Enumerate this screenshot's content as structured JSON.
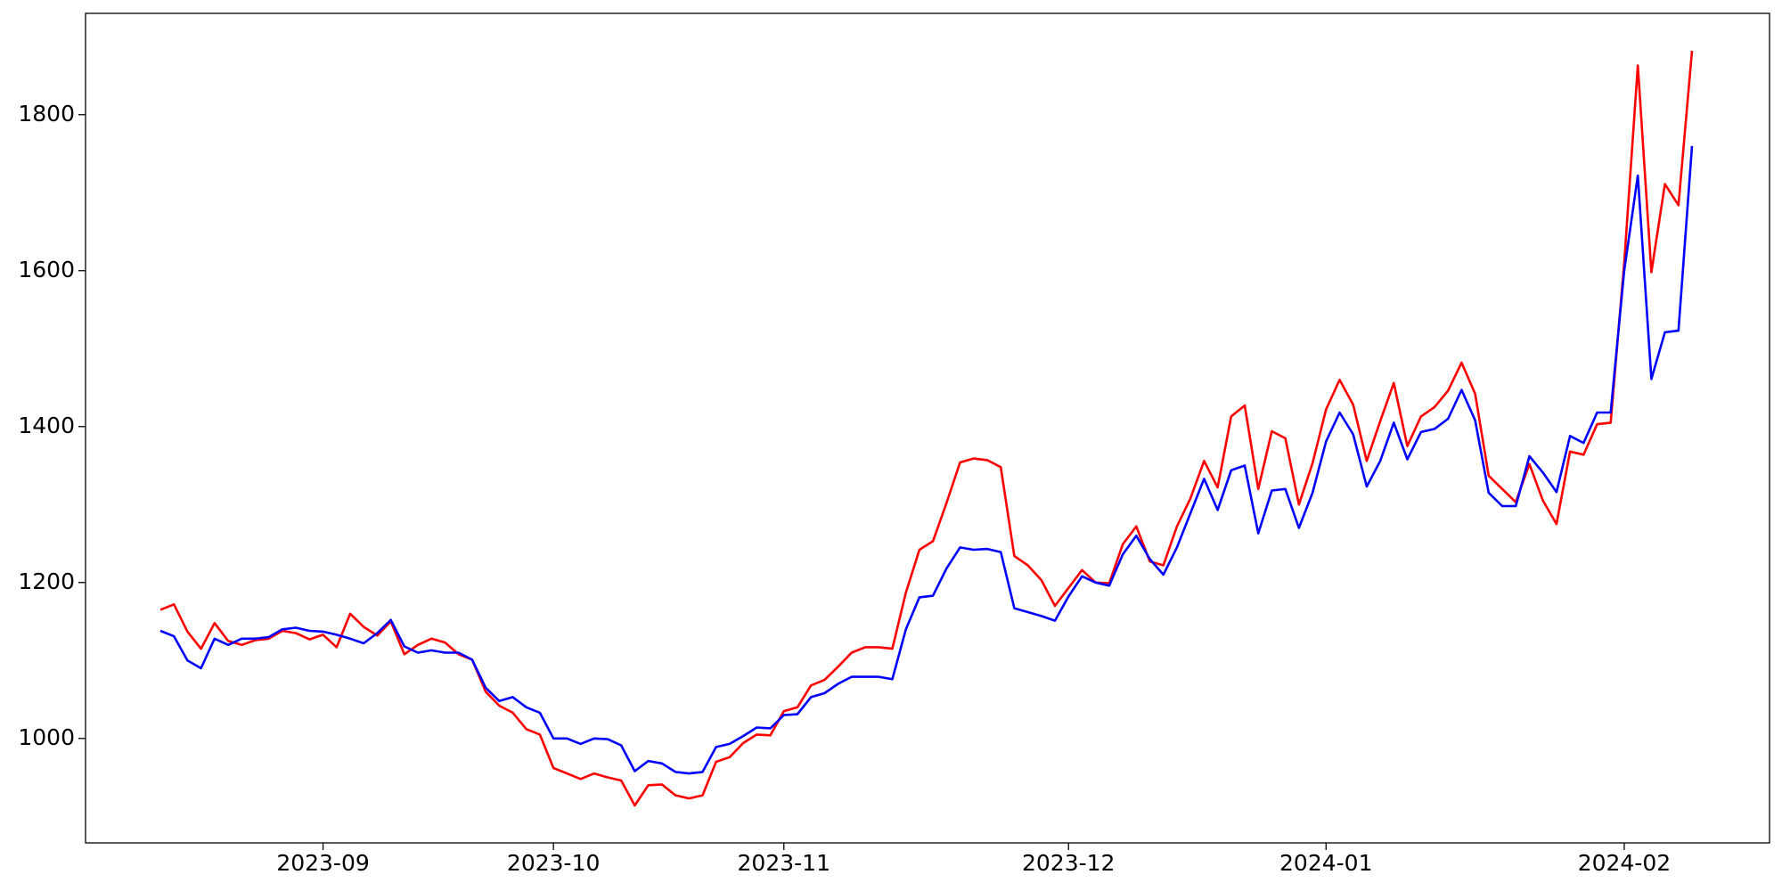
{
  "chart_data": {
    "type": "line",
    "categories": [
      null,
      null,
      null,
      null,
      null,
      null,
      null,
      null,
      null,
      null,
      null,
      null,
      "2023-09",
      null,
      null,
      null,
      null,
      null,
      null,
      null,
      null,
      null,
      null,
      null,
      null,
      null,
      null,
      null,
      null,
      "2023-10",
      null,
      null,
      null,
      null,
      null,
      null,
      null,
      null,
      null,
      null,
      null,
      null,
      null,
      null,
      null,
      null,
      "2023-11",
      null,
      null,
      null,
      null,
      null,
      null,
      null,
      null,
      null,
      null,
      null,
      null,
      null,
      null,
      null,
      null,
      null,
      null,
      null,
      null,
      "2023-12",
      null,
      null,
      null,
      null,
      null,
      null,
      null,
      null,
      null,
      null,
      null,
      null,
      null,
      null,
      null,
      null,
      null,
      null,
      "2024-01",
      null,
      null,
      null,
      null,
      null,
      null,
      null,
      null,
      null,
      null,
      null,
      null,
      null,
      null,
      null,
      null,
      null,
      null,
      null,
      null,
      null,
      "2024-02",
      null,
      null,
      null,
      null,
      null
    ],
    "series": [
      {
        "color": "#ff0000",
        "values": [
          1165,
          1172,
          1137,
          1115,
          1148,
          1125,
          1120,
          1126,
          1128,
          1138,
          1135,
          1127,
          1133,
          1117,
          1160,
          1143,
          1132,
          1150,
          1108,
          1120,
          1128,
          1123,
          1108,
          1101,
          1060,
          1042,
          1033,
          1012,
          1005,
          962,
          955,
          948,
          955,
          950,
          946,
          914,
          940,
          941,
          927,
          923,
          927,
          970,
          976,
          994,
          1005,
          1004,
          1035,
          1040,
          1068,
          1075,
          1092,
          1110,
          1117,
          1117,
          1115,
          1187,
          1242,
          1253,
          1302,
          1354,
          1359,
          1357,
          1348,
          1234,
          1222,
          1203,
          1170,
          1193,
          1216,
          1200,
          1199,
          1249,
          1272,
          1227,
          1222,
          1272,
          1308,
          1356,
          1322,
          1413,
          1427,
          1320,
          1394,
          1385,
          1300,
          1353,
          1422,
          1460,
          1428,
          1356,
          1407,
          1456,
          1375,
          1413,
          1425,
          1446,
          1482,
          1442,
          1337,
          1320,
          1303,
          1352,
          1305,
          1275,
          1368,
          1364,
          1403,
          1405,
          1610,
          1863,
          1598,
          1711,
          1684,
          1882
        ]
      },
      {
        "color": "#0000ff",
        "values": [
          1138,
          1131,
          1100,
          1090,
          1128,
          1120,
          1128,
          1128,
          1130,
          1140,
          1142,
          1138,
          1137,
          1133,
          1128,
          1122,
          1135,
          1152,
          1118,
          1110,
          1113,
          1110,
          1110,
          1101,
          1065,
          1048,
          1053,
          1040,
          1033,
          1000,
          1000,
          993,
          1000,
          999,
          991,
          958,
          971,
          968,
          957,
          955,
          957,
          989,
          993,
          1003,
          1014,
          1013,
          1030,
          1031,
          1053,
          1058,
          1070,
          1079,
          1079,
          1079,
          1076,
          1140,
          1181,
          1183,
          1218,
          1245,
          1242,
          1243,
          1239,
          1167,
          1162,
          1157,
          1151,
          1182,
          1208,
          1200,
          1196,
          1236,
          1260,
          1230,
          1210,
          1245,
          1289,
          1333,
          1293,
          1344,
          1350,
          1263,
          1318,
          1320,
          1270,
          1315,
          1381,
          1418,
          1390,
          1323,
          1356,
          1405,
          1358,
          1393,
          1397,
          1410,
          1447,
          1408,
          1315,
          1298,
          1298,
          1362,
          1341,
          1316,
          1388,
          1379,
          1418,
          1418,
          1600,
          1722,
          1461,
          1521,
          1523,
          1760
        ]
      }
    ],
    "ylim": [
      866,
      1930
    ],
    "yticks": [
      1000,
      1200,
      1400,
      1600,
      1800
    ],
    "grid": false
  }
}
